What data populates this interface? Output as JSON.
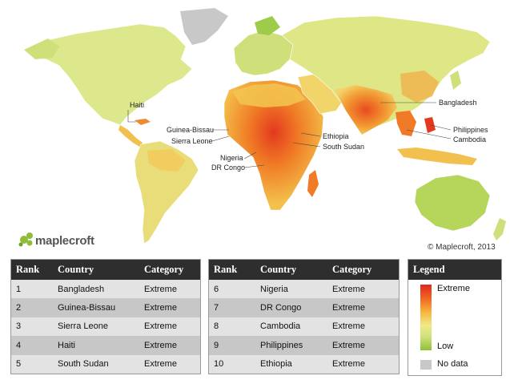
{
  "map": {
    "brand": "maplecroft",
    "copyright": "© Maplecroft, 2013",
    "labels": [
      "Haiti",
      "Guinea-Bissau",
      "Sierra Leone",
      "Nigeria",
      "DR Congo",
      "Ethiopia",
      "South Sudan",
      "Bangladesh",
      "Philippines",
      "Cambodia"
    ],
    "colors": {
      "extreme": "#e0271f",
      "high": "#f06a22",
      "medium": "#f6b63c",
      "low_medium": "#f2e88a",
      "low": "#8fc137",
      "no_data": "#c8c8c8"
    }
  },
  "table": {
    "headers": [
      "Rank",
      "Country",
      "Category"
    ],
    "left": [
      [
        "1",
        "Bangladesh",
        "Extreme"
      ],
      [
        "2",
        "Guinea-Bissau",
        "Extreme"
      ],
      [
        "3",
        "Sierra Leone",
        "Extreme"
      ],
      [
        "4",
        "Haiti",
        "Extreme"
      ],
      [
        "5",
        "South Sudan",
        "Extreme"
      ]
    ],
    "right": [
      [
        "6",
        "Nigeria",
        "Extreme"
      ],
      [
        "7",
        "DR Congo",
        "Extreme"
      ],
      [
        "8",
        "Cambodia",
        "Extreme"
      ],
      [
        "9",
        "Philippines",
        "Extreme"
      ],
      [
        "10",
        "Ethiopia",
        "Extreme"
      ]
    ]
  },
  "legend": {
    "title": "Legend",
    "high": "Extreme",
    "low": "Low",
    "no_data": "No data"
  }
}
